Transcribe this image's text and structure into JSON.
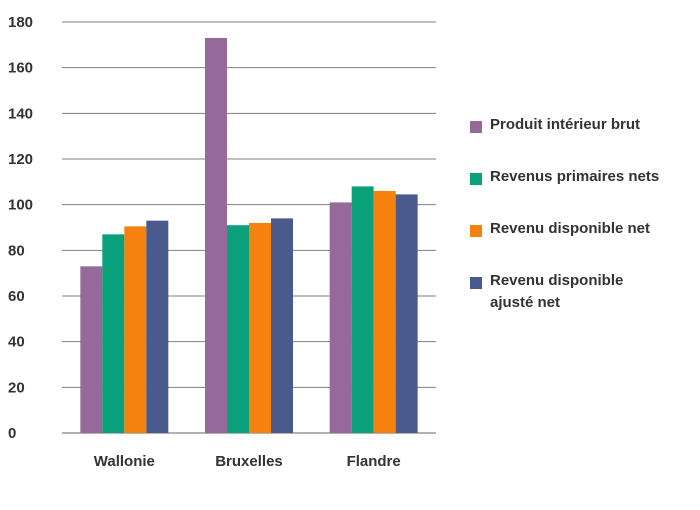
{
  "chart_data": {
    "type": "bar",
    "categories": [
      "Wallonie",
      "Bruxelles",
      "Flandre"
    ],
    "series": [
      {
        "name": "Produit intérieur brut",
        "color": "#956a9a",
        "values": [
          73,
          173,
          101
        ]
      },
      {
        "name": "Revenus primaires nets",
        "color": "#0aa07a",
        "values": [
          87,
          91,
          108
        ]
      },
      {
        "name": "Revenu disponible net",
        "color": "#f5820f",
        "values": [
          90.5,
          92,
          106
        ]
      },
      {
        "name": "Revenu disponible\najusté net",
        "color": "#4b5a8d",
        "values": [
          93,
          94,
          104.5
        ]
      }
    ],
    "yticks": [
      "0",
      "20",
      "40",
      "60",
      "80",
      "100",
      "120",
      "140",
      "160",
      "180"
    ],
    "ylim": [
      0,
      180
    ],
    "grid": true,
    "legend_position": "right",
    "title": "",
    "xlabel": "",
    "ylabel": ""
  }
}
